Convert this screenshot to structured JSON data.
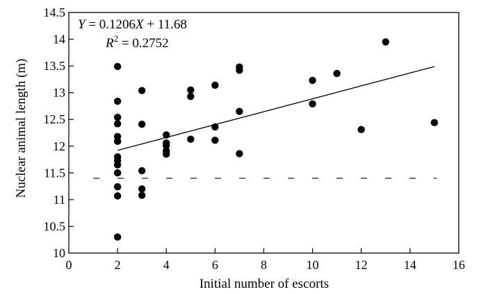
{
  "chart_data": {
    "type": "scatter",
    "xlabel": "Initial number of escorts",
    "ylabel": "Nuclear animal length (m)",
    "xlim": [
      0,
      16
    ],
    "ylim": [
      10,
      14.5
    ],
    "xticks": [
      "0",
      "2",
      "4",
      "6",
      "8",
      "10",
      "12",
      "14",
      "16"
    ],
    "yticks": [
      "10",
      "10.5",
      "11",
      "11.5",
      "12",
      "12.5",
      "13",
      "13.5",
      "14",
      "14.5"
    ],
    "grid": false,
    "points": [
      {
        "x": 2,
        "y": 13.49
      },
      {
        "x": 2,
        "y": 12.84
      },
      {
        "x": 2,
        "y": 12.54
      },
      {
        "x": 2,
        "y": 12.42
      },
      {
        "x": 2,
        "y": 12.18
      },
      {
        "x": 2,
        "y": 12.09
      },
      {
        "x": 2,
        "y": 11.8
      },
      {
        "x": 2,
        "y": 11.73
      },
      {
        "x": 2,
        "y": 11.65
      },
      {
        "x": 2,
        "y": 11.5
      },
      {
        "x": 2,
        "y": 11.24
      },
      {
        "x": 2,
        "y": 11.07
      },
      {
        "x": 2,
        "y": 10.3
      },
      {
        "x": 3,
        "y": 13.04
      },
      {
        "x": 3,
        "y": 12.41
      },
      {
        "x": 3,
        "y": 11.54
      },
      {
        "x": 3,
        "y": 11.2
      },
      {
        "x": 3,
        "y": 11.08
      },
      {
        "x": 4,
        "y": 12.21
      },
      {
        "x": 4,
        "y": 12.06
      },
      {
        "x": 4,
        "y": 12.01
      },
      {
        "x": 4,
        "y": 11.91
      },
      {
        "x": 4,
        "y": 11.85
      },
      {
        "x": 5,
        "y": 13.05
      },
      {
        "x": 5,
        "y": 12.93
      },
      {
        "x": 5,
        "y": 12.13
      },
      {
        "x": 6,
        "y": 13.14
      },
      {
        "x": 6,
        "y": 12.36
      },
      {
        "x": 6,
        "y": 12.11
      },
      {
        "x": 7,
        "y": 13.48
      },
      {
        "x": 7,
        "y": 13.42
      },
      {
        "x": 7,
        "y": 12.65
      },
      {
        "x": 7,
        "y": 11.86
      },
      {
        "x": 10,
        "y": 13.23
      },
      {
        "x": 10,
        "y": 12.79
      },
      {
        "x": 11,
        "y": 13.36
      },
      {
        "x": 12,
        "y": 12.31
      },
      {
        "x": 13,
        "y": 13.95
      },
      {
        "x": 15,
        "y": 12.44
      }
    ],
    "regression": {
      "slope": 0.1206,
      "intercept": 11.68,
      "x_from": 2,
      "x_to": 15
    },
    "reference_line": {
      "y": 11.4,
      "style": "dashed"
    },
    "annotations": {
      "equation": {
        "y_sym": "Y",
        "eq_rest": " = 0.1206",
        "x_sym": "X",
        "tail": " + 11.68"
      },
      "r_squared": {
        "r": "R",
        "exp": "2",
        "value": " = 0.2752"
      }
    }
  }
}
